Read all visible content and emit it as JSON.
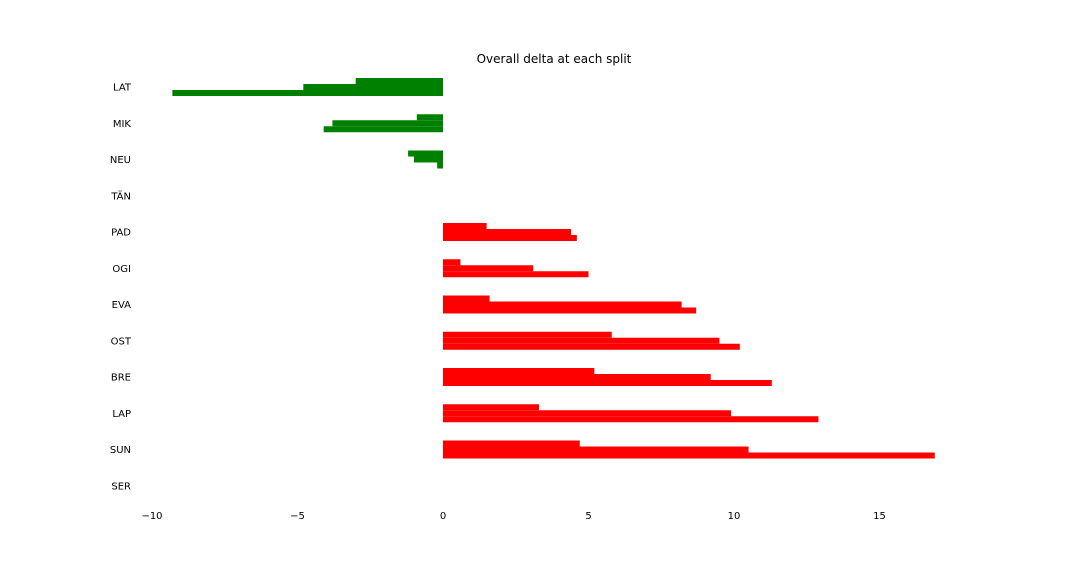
{
  "chart_data": {
    "type": "bar",
    "orientation": "horizontal",
    "title": "Overall delta at each split",
    "xlabel": "",
    "ylabel": "",
    "xlim": [
      -10,
      17.5
    ],
    "x_ticks": [
      -10,
      -5,
      0,
      5,
      10,
      15
    ],
    "x_tick_labels": [
      "−10",
      "−5",
      "0",
      "5",
      "10",
      "15"
    ],
    "grid": false,
    "categories": [
      "LAT",
      "MIK",
      "NEU",
      "TÄN",
      "PAD",
      "OGI",
      "EVA",
      "OST",
      "BRE",
      "LAP",
      "SUN",
      "SER"
    ],
    "series": [
      {
        "values": [
          -3.0,
          -0.9,
          -1.2,
          0,
          1.5,
          0.6,
          1.6,
          5.8,
          5.2,
          3.3,
          4.7,
          0
        ]
      },
      {
        "values": [
          -4.8,
          -3.8,
          -1.0,
          0,
          4.4,
          3.1,
          8.2,
          9.5,
          9.2,
          9.9,
          10.5,
          0
        ]
      },
      {
        "values": [
          -9.3,
          -4.1,
          -0.2,
          0,
          4.6,
          5.0,
          8.7,
          10.2,
          11.3,
          12.9,
          16.9,
          0
        ]
      }
    ],
    "positive_color": "#ff0000",
    "negative_color": "#008000"
  }
}
